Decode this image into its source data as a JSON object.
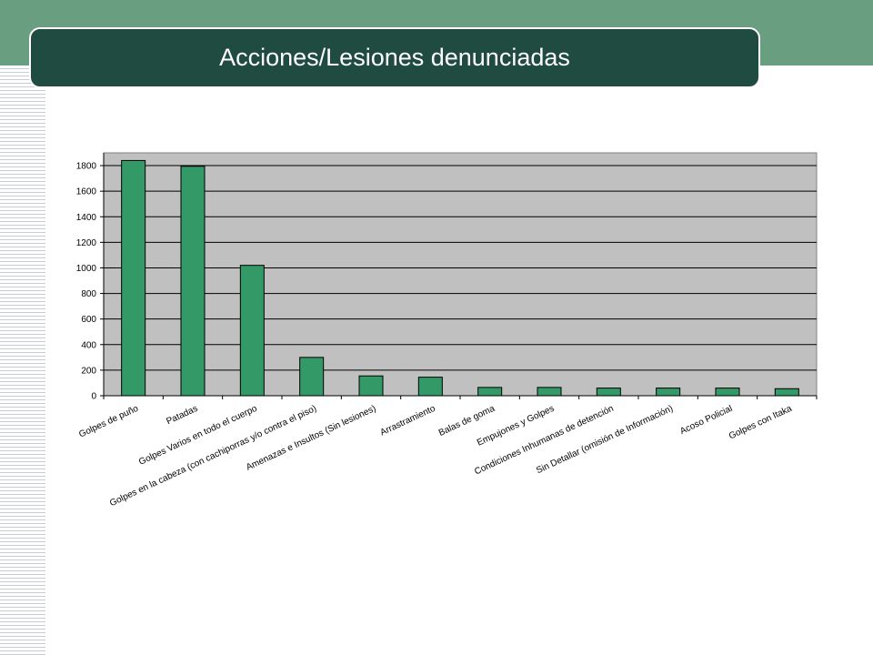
{
  "slide": {
    "title": "Acciones/Lesiones denunciadas"
  },
  "colors": {
    "header_band": "#6a9e80",
    "title_bar": "#1f4b40",
    "plot_background": "#c0c0c0",
    "bar_fill": "#339966"
  },
  "chart_data": {
    "type": "bar",
    "title": "",
    "xlabel": "",
    "ylabel": "",
    "ylim": [
      0,
      1900
    ],
    "yticks": [
      0,
      200,
      400,
      600,
      800,
      1000,
      1200,
      1400,
      1600,
      1800
    ],
    "grid": true,
    "legend": "none",
    "categories": [
      "Golpes de puño",
      "Patadas",
      "Golpes Varios en todo el cuerpo",
      "Golpes en la cabeza (con cachiporras y/o contra el piso)",
      "Amenazas e Insultos (Sin lesiones)",
      "Arrastramiento",
      "Balas de goma",
      "Empujones y Golpes",
      "Condiciones Inhumanas de detención",
      "Sin Detallar (omisión de Información)",
      "Acoso Policial",
      "Golpes con Itaka"
    ],
    "values": [
      1840,
      1795,
      1020,
      300,
      155,
      145,
      65,
      65,
      60,
      60,
      60,
      55
    ]
  }
}
